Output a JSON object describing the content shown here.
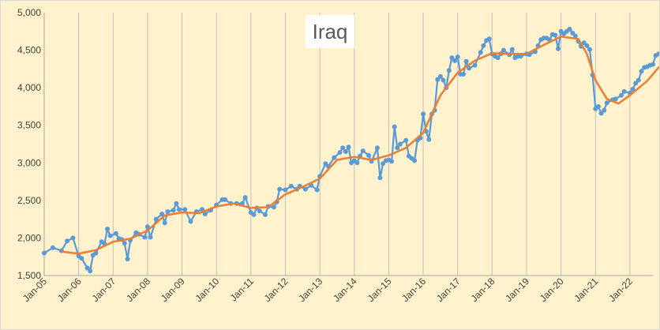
{
  "chart_data": {
    "type": "line",
    "title": "Iraq",
    "xlabel": "",
    "ylabel": "",
    "ylim": [
      1500,
      5000
    ],
    "y_ticks": [
      1500,
      2000,
      2500,
      3000,
      3500,
      4000,
      4500,
      5000
    ],
    "y_tick_labels": [
      "1,500",
      "2,000",
      "2,500",
      "3,000",
      "3,500",
      "4,000",
      "4,500",
      "5,000"
    ],
    "x_range": [
      "2005-01",
      "2022-09"
    ],
    "x_ticks": [
      "2005-01",
      "2006-01",
      "2007-01",
      "2008-01",
      "2009-01",
      "2010-01",
      "2011-01",
      "2012-01",
      "2013-01",
      "2014-01",
      "2015-01",
      "2016-01",
      "2017-01",
      "2018-01",
      "2019-01",
      "2020-01",
      "2021-01",
      "2022-01"
    ],
    "x_tick_labels": [
      "Jan-05",
      "Jan-06",
      "Jan-07",
      "Jan-08",
      "Jan-09",
      "Jan-10",
      "Jan-11",
      "Jan-12",
      "Jan-13",
      "Jan-14",
      "Jan-15",
      "Jan-16",
      "Jan-17",
      "Jan-18",
      "Jan-19",
      "Jan-20",
      "Jan-21",
      "Jan-22"
    ],
    "grid": {
      "vertical": true,
      "horizontal": false
    },
    "series": [
      {
        "style": "line-markers",
        "color": "#5b9bd5",
        "points": [
          [
            "2005-01",
            1800
          ],
          [
            "2005-04",
            1870
          ],
          [
            "2005-07",
            1830
          ],
          [
            "2005-09",
            1960
          ],
          [
            "2005-11",
            2000
          ],
          [
            "2006-01",
            1760
          ],
          [
            "2006-02",
            1730
          ],
          [
            "2006-04",
            1600
          ],
          [
            "2006-05",
            1560
          ],
          [
            "2006-06",
            1770
          ],
          [
            "2006-07",
            1800
          ],
          [
            "2006-09",
            1950
          ],
          [
            "2006-10",
            1920
          ],
          [
            "2006-11",
            2120
          ],
          [
            "2006-12",
            2030
          ],
          [
            "2007-02",
            2060
          ],
          [
            "2007-03",
            1990
          ],
          [
            "2007-04",
            1980
          ],
          [
            "2007-05",
            1930
          ],
          [
            "2007-06",
            1720
          ],
          [
            "2007-07",
            1970
          ],
          [
            "2007-09",
            2070
          ],
          [
            "2007-10",
            2050
          ],
          [
            "2007-12",
            2010
          ],
          [
            "2008-01",
            2150
          ],
          [
            "2008-02",
            2010
          ],
          [
            "2008-04",
            2250
          ],
          [
            "2008-06",
            2320
          ],
          [
            "2008-07",
            2200
          ],
          [
            "2008-08",
            2350
          ],
          [
            "2008-10",
            2370
          ],
          [
            "2008-11",
            2460
          ],
          [
            "2008-12",
            2380
          ],
          [
            "2009-02",
            2380
          ],
          [
            "2009-04",
            2220
          ],
          [
            "2009-06",
            2350
          ],
          [
            "2009-08",
            2380
          ],
          [
            "2009-09",
            2320
          ],
          [
            "2009-11",
            2370
          ],
          [
            "2010-01",
            2440
          ],
          [
            "2010-03",
            2510
          ],
          [
            "2010-04",
            2510
          ],
          [
            "2010-06",
            2460
          ],
          [
            "2010-08",
            2460
          ],
          [
            "2010-10",
            2460
          ],
          [
            "2010-11",
            2540
          ],
          [
            "2011-01",
            2340
          ],
          [
            "2011-02",
            2310
          ],
          [
            "2011-03",
            2400
          ],
          [
            "2011-04",
            2360
          ],
          [
            "2011-06",
            2310
          ],
          [
            "2011-07",
            2420
          ],
          [
            "2011-09",
            2410
          ],
          [
            "2011-10",
            2480
          ],
          [
            "2011-11",
            2650
          ],
          [
            "2012-01",
            2640
          ],
          [
            "2012-03",
            2690
          ],
          [
            "2012-05",
            2650
          ],
          [
            "2012-06",
            2690
          ],
          [
            "2012-08",
            2650
          ],
          [
            "2012-10",
            2700
          ],
          [
            "2012-12",
            2640
          ],
          [
            "2013-01",
            2820
          ],
          [
            "2013-03",
            2990
          ],
          [
            "2013-04",
            2950
          ],
          [
            "2013-06",
            3070
          ],
          [
            "2013-08",
            3140
          ],
          [
            "2013-09",
            3200
          ],
          [
            "2013-10",
            3150
          ],
          [
            "2013-11",
            3210
          ],
          [
            "2013-12",
            3000
          ],
          [
            "2014-01",
            3030
          ],
          [
            "2014-02",
            3000
          ],
          [
            "2014-03",
            3090
          ],
          [
            "2014-04",
            3160
          ],
          [
            "2014-06",
            3100
          ],
          [
            "2014-07",
            3020
          ],
          [
            "2014-09",
            3200
          ],
          [
            "2014-10",
            2800
          ],
          [
            "2014-11",
            2990
          ],
          [
            "2014-12",
            3030
          ],
          [
            "2015-01",
            3040
          ],
          [
            "2015-02",
            3020
          ],
          [
            "2015-03",
            3480
          ],
          [
            "2015-04",
            3200
          ],
          [
            "2015-05",
            3250
          ],
          [
            "2015-07",
            3300
          ],
          [
            "2015-08",
            3090
          ],
          [
            "2015-09",
            3060
          ],
          [
            "2015-10",
            3030
          ],
          [
            "2015-11",
            3300
          ],
          [
            "2015-12",
            3330
          ],
          [
            "2016-01",
            3650
          ],
          [
            "2016-02",
            3420
          ],
          [
            "2016-03",
            3310
          ],
          [
            "2016-04",
            3650
          ],
          [
            "2016-05",
            3700
          ],
          [
            "2016-06",
            4110
          ],
          [
            "2016-07",
            4150
          ],
          [
            "2016-08",
            4100
          ],
          [
            "2016-09",
            4000
          ],
          [
            "2016-10",
            4230
          ],
          [
            "2016-11",
            4400
          ],
          [
            "2016-12",
            4360
          ],
          [
            "2017-01",
            4410
          ],
          [
            "2017-02",
            4180
          ],
          [
            "2017-03",
            4180
          ],
          [
            "2017-04",
            4350
          ],
          [
            "2017-05",
            4260
          ],
          [
            "2017-07",
            4300
          ],
          [
            "2017-09",
            4470
          ],
          [
            "2017-10",
            4560
          ],
          [
            "2017-11",
            4630
          ],
          [
            "2017-12",
            4650
          ],
          [
            "2018-01",
            4450
          ],
          [
            "2018-02",
            4420
          ],
          [
            "2018-03",
            4400
          ],
          [
            "2018-04",
            4450
          ],
          [
            "2018-05",
            4500
          ],
          [
            "2018-07",
            4440
          ],
          [
            "2018-08",
            4510
          ],
          [
            "2018-09",
            4400
          ],
          [
            "2018-10",
            4420
          ],
          [
            "2018-11",
            4420
          ],
          [
            "2019-01",
            4450
          ],
          [
            "2019-02",
            4440
          ],
          [
            "2019-04",
            4480
          ],
          [
            "2019-05",
            4560
          ],
          [
            "2019-06",
            4640
          ],
          [
            "2019-07",
            4660
          ],
          [
            "2019-08",
            4660
          ],
          [
            "2019-09",
            4640
          ],
          [
            "2019-10",
            4710
          ],
          [
            "2019-11",
            4700
          ],
          [
            "2019-12",
            4520
          ],
          [
            "2020-01",
            4750
          ],
          [
            "2020-02",
            4720
          ],
          [
            "2020-03",
            4750
          ],
          [
            "2020-04",
            4780
          ],
          [
            "2020-05",
            4730
          ],
          [
            "2020-06",
            4690
          ],
          [
            "2020-07",
            4620
          ],
          [
            "2020-08",
            4550
          ],
          [
            "2020-09",
            4600
          ],
          [
            "2020-10",
            4560
          ],
          [
            "2020-11",
            4510
          ],
          [
            "2020-12",
            4170
          ],
          [
            "2021-01",
            3720
          ],
          [
            "2021-02",
            3750
          ],
          [
            "2021-03",
            3660
          ],
          [
            "2021-04",
            3700
          ],
          [
            "2021-05",
            3800
          ],
          [
            "2021-07",
            3840
          ],
          [
            "2021-08",
            3850
          ],
          [
            "2021-10",
            3900
          ],
          [
            "2021-11",
            3950
          ],
          [
            "2022-01",
            3930
          ],
          [
            "2022-02",
            3980
          ],
          [
            "2022-03",
            4060
          ],
          [
            "2022-04",
            4100
          ],
          [
            "2022-05",
            4220
          ],
          [
            "2022-06",
            4270
          ],
          [
            "2022-07",
            4280
          ],
          [
            "2022-08",
            4300
          ],
          [
            "2022-09",
            4310
          ],
          [
            "2022-10",
            4430
          ],
          [
            "2022-11",
            4450
          ],
          [
            "2022-12",
            4480
          ],
          [
            "2023-01",
            4500
          ]
        ]
      },
      {
        "style": "line",
        "color": "#ed7d31",
        "points": [
          [
            "2005-07",
            1820
          ],
          [
            "2006-01",
            1790
          ],
          [
            "2006-07",
            1840
          ],
          [
            "2007-01",
            1950
          ],
          [
            "2007-07",
            1990
          ],
          [
            "2008-01",
            2100
          ],
          [
            "2008-07",
            2300
          ],
          [
            "2009-01",
            2340
          ],
          [
            "2009-07",
            2330
          ],
          [
            "2010-01",
            2420
          ],
          [
            "2010-07",
            2460
          ],
          [
            "2011-01",
            2400
          ],
          [
            "2011-07",
            2410
          ],
          [
            "2012-01",
            2580
          ],
          [
            "2012-07",
            2680
          ],
          [
            "2013-01",
            2790
          ],
          [
            "2013-07",
            3040
          ],
          [
            "2014-01",
            3080
          ],
          [
            "2014-07",
            3040
          ],
          [
            "2015-01",
            3100
          ],
          [
            "2015-07",
            3200
          ],
          [
            "2016-01",
            3400
          ],
          [
            "2016-07",
            3900
          ],
          [
            "2017-01",
            4200
          ],
          [
            "2017-07",
            4360
          ],
          [
            "2018-01",
            4460
          ],
          [
            "2018-07",
            4450
          ],
          [
            "2019-01",
            4450
          ],
          [
            "2019-07",
            4570
          ],
          [
            "2020-01",
            4680
          ],
          [
            "2020-07",
            4650
          ],
          [
            "2020-10",
            4450
          ],
          [
            "2021-01",
            4100
          ],
          [
            "2021-05",
            3850
          ],
          [
            "2021-09",
            3790
          ],
          [
            "2022-01",
            3900
          ],
          [
            "2022-07",
            4090
          ],
          [
            "2022-11",
            4270
          ],
          [
            "2023-01",
            4320
          ]
        ]
      }
    ]
  }
}
